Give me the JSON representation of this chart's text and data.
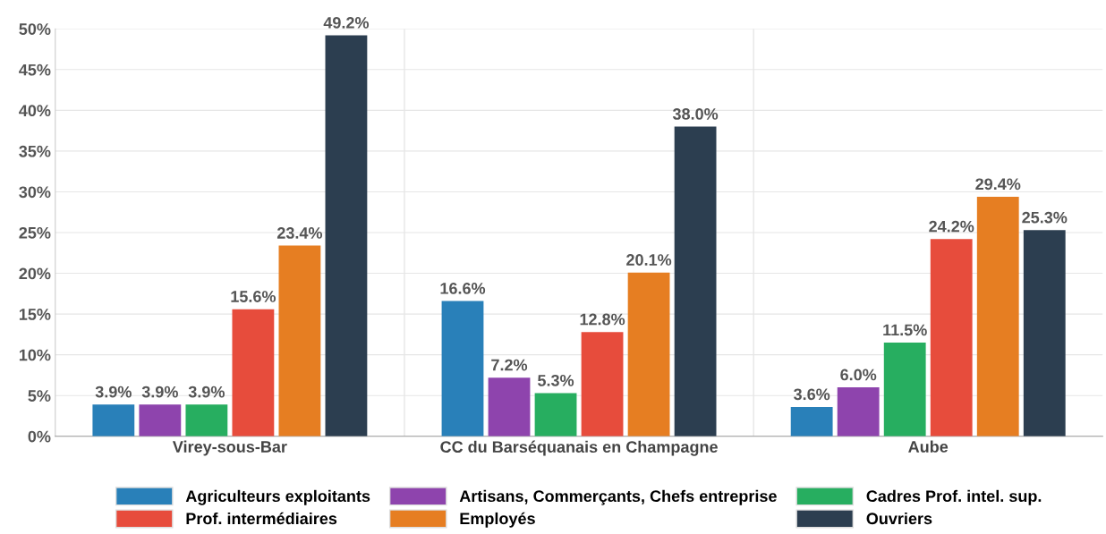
{
  "chart_data": {
    "type": "bar",
    "categories": [
      "Virey-sous-Bar",
      "CC du Barséquanais en Champagne",
      "Aube"
    ],
    "series": [
      {
        "name": "Agriculteurs exploitants",
        "color": "#2980b9",
        "values": [
          3.9,
          16.6,
          3.6
        ],
        "value_labels": [
          "3.9%",
          "16.6%",
          "3.6%"
        ]
      },
      {
        "name": "Artisans, Commerçants, Chefs entreprise",
        "color": "#8e44ad",
        "values": [
          3.9,
          7.2,
          6.0
        ],
        "value_labels": [
          "3.9%",
          "7.2%",
          "6.0%"
        ]
      },
      {
        "name": "Cadres Prof. intel. sup.",
        "color": "#27ae60",
        "values": [
          3.9,
          5.3,
          11.5
        ],
        "value_labels": [
          "3.9%",
          "5.3%",
          "11.5%"
        ]
      },
      {
        "name": "Prof. intermédiaires",
        "color": "#e74c3c",
        "values": [
          15.6,
          12.8,
          24.2
        ],
        "value_labels": [
          "15.6%",
          "12.8%",
          "24.2%"
        ]
      },
      {
        "name": "Employés",
        "color": "#e67e22",
        "values": [
          23.4,
          20.1,
          29.4
        ],
        "value_labels": [
          "23.4%",
          "20.1%",
          "29.4%"
        ]
      },
      {
        "name": "Ouvriers",
        "color": "#2c3e50",
        "values": [
          49.2,
          38.0,
          25.3
        ],
        "value_labels": [
          "49.2%",
          "38.0%",
          "25.3%"
        ]
      }
    ],
    "ylim": [
      0,
      50
    ],
    "yticks": [
      {
        "value": 0,
        "label": "0%"
      },
      {
        "value": 5,
        "label": "5%"
      },
      {
        "value": 10,
        "label": "10%"
      },
      {
        "value": 15,
        "label": "15%"
      },
      {
        "value": 20,
        "label": "20%"
      },
      {
        "value": 25,
        "label": "25%"
      },
      {
        "value": 30,
        "label": "30%"
      },
      {
        "value": 35,
        "label": "35%"
      },
      {
        "value": 40,
        "label": "40%"
      },
      {
        "value": 45,
        "label": "45%"
      },
      {
        "value": 50,
        "label": "50%"
      }
    ],
    "grid": true,
    "legend": "bottom"
  }
}
